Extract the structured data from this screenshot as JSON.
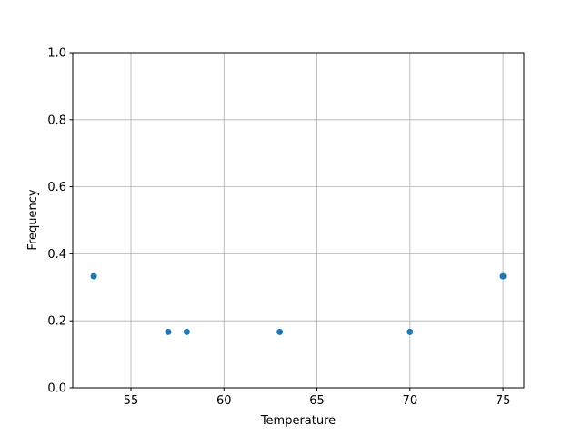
{
  "chart_data": {
    "type": "scatter",
    "title": "",
    "xlabel": "Temperature",
    "ylabel": "Frequency",
    "xlim": [
      51.87,
      76.12
    ],
    "ylim": [
      0.0,
      1.0
    ],
    "xticks": [
      55,
      60,
      65,
      70,
      75
    ],
    "xtick_labels": [
      "55",
      "60",
      "65",
      "70",
      "75"
    ],
    "yticks": [
      0.0,
      0.2,
      0.4,
      0.6,
      0.8,
      1.0
    ],
    "ytick_labels": [
      "0.0",
      "0.2",
      "0.4",
      "0.6",
      "0.8",
      "1.0"
    ],
    "grid": true,
    "color": "#1f77b4",
    "points": [
      {
        "x": 53,
        "y": 0.333
      },
      {
        "x": 57,
        "y": 0.167
      },
      {
        "x": 58,
        "y": 0.167
      },
      {
        "x": 63,
        "y": 0.167
      },
      {
        "x": 70,
        "y": 0.167
      },
      {
        "x": 75,
        "y": 0.333
      }
    ]
  }
}
